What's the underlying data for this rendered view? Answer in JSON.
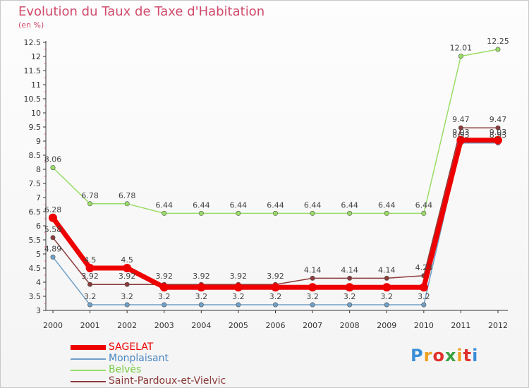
{
  "title": "Evolution du Taux de Taxe d'Habitation",
  "subtitle": "(en %)",
  "logo": {
    "text": "Proxiti",
    "colors": [
      "#3b8fd8",
      "#f0a020",
      "#e0302c",
      "#3aa040",
      "#f0a020",
      "#e0302c",
      "#3b8fd8"
    ]
  },
  "chart_data": {
    "type": "line",
    "title": "Evolution du Taux de Taxe d'Habitation",
    "ylabel": "(en %)",
    "xlabel": "",
    "ylim": [
      3,
      12.5
    ],
    "grid": false,
    "legend_position": "bottom-left",
    "x": [
      "2000",
      "2001",
      "2002",
      "2003",
      "2004",
      "2005",
      "2006",
      "2007",
      "2008",
      "2009",
      "2010",
      "2011",
      "2012"
    ],
    "yticks": [
      "3",
      "3.5",
      "4",
      "4.5",
      "5",
      "5.5",
      "6",
      "6.5",
      "7",
      "7.5",
      "8",
      "8.5",
      "9",
      "9.5",
      "10",
      "10.5",
      "11",
      "11.5",
      "12",
      "12.5"
    ],
    "series": [
      {
        "name": "SAGELAT",
        "color": "#ee0000",
        "values": [
          6.28,
          4.5,
          4.5,
          3.82,
          3.82,
          3.82,
          3.82,
          3.82,
          3.82,
          3.82,
          3.82,
          9.03,
          9.03
        ],
        "labels": [
          "6.28",
          "4.5",
          "4.5",
          "",
          "",
          "",
          "",
          "",
          "",
          "",
          "",
          "9.03",
          "9.03"
        ]
      },
      {
        "name": "Monplaisant",
        "color": "#6fa0c8",
        "values": [
          4.89,
          3.2,
          3.2,
          3.2,
          3.2,
          3.2,
          3.2,
          3.2,
          3.2,
          3.2,
          3.2,
          8.93,
          8.93
        ],
        "labels": [
          "4.89",
          "3.2",
          "3.2",
          "3.2",
          "3.2",
          "3.2",
          "3.2",
          "3.2",
          "3.2",
          "3.2",
          "3.2",
          "8.93",
          "8.93"
        ]
      },
      {
        "name": "Belvès",
        "color": "#99dd66",
        "values": [
          8.06,
          6.78,
          6.78,
          6.44,
          6.44,
          6.44,
          6.44,
          6.44,
          6.44,
          6.44,
          6.44,
          12.01,
          12.25
        ],
        "labels": [
          "8.06",
          "6.78",
          "6.78",
          "6.44",
          "6.44",
          "6.44",
          "6.44",
          "6.44",
          "6.44",
          "6.44",
          "6.44",
          "12.01",
          "12.25"
        ]
      },
      {
        "name": "Saint-Pardoux-et-Vielvic",
        "color": "#8b3a3a",
        "values": [
          5.58,
          3.92,
          3.92,
          3.92,
          3.92,
          3.92,
          3.92,
          4.14,
          4.14,
          4.14,
          4.23,
          9.47,
          9.47
        ],
        "labels": [
          "5.58",
          "3.92",
          "3.92",
          "3.92",
          "3.92",
          "3.92",
          "3.92",
          "4.14",
          "4.14",
          "4.14",
          "4.23",
          "9.47",
          "9.47"
        ]
      }
    ]
  }
}
